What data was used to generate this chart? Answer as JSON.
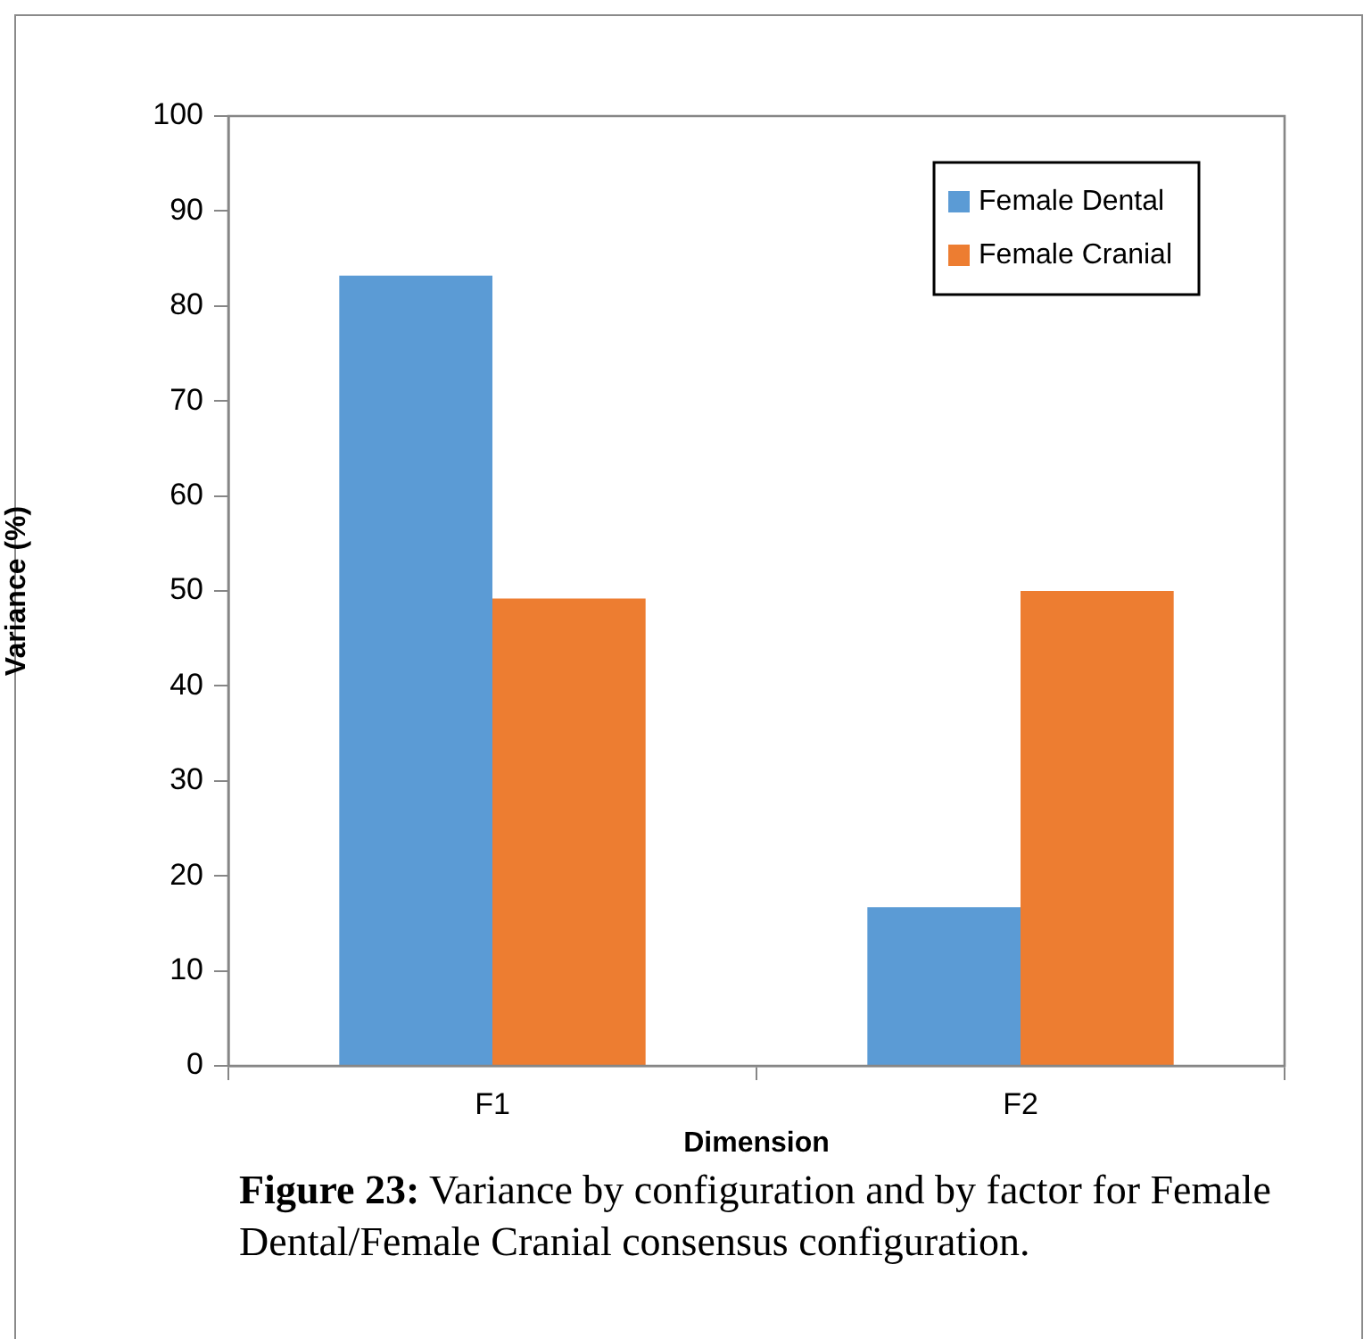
{
  "chart_data": {
    "type": "bar",
    "categories": [
      "F1",
      "F2"
    ],
    "series": [
      {
        "name": "Female Dental",
        "color": "#5b9bd5",
        "values": [
          83.2,
          16.7
        ]
      },
      {
        "name": "Female Cranial",
        "color": "#ed7d31",
        "values": [
          49.2,
          50.0
        ]
      }
    ],
    "xlabel": "Dimension",
    "ylabel": "Variance (%)",
    "ylim": [
      0,
      100
    ],
    "yticks": [
      0,
      10,
      20,
      30,
      40,
      50,
      60,
      70,
      80,
      90,
      100
    ],
    "grid": false,
    "legend": "top right",
    "annotations": [
      "Figure 23: Variance  by configuration and by factor for Female  Dental/Female Cranial consensus configuration."
    ]
  }
}
